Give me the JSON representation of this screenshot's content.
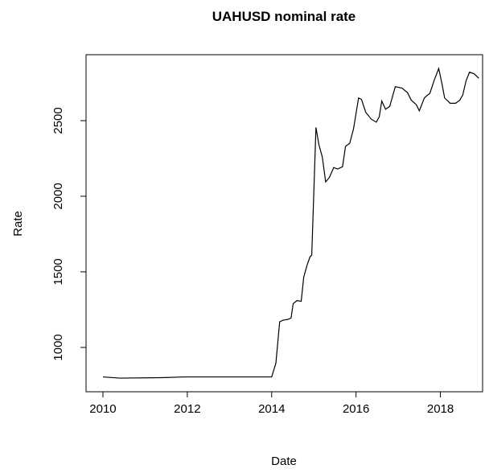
{
  "chart_data": {
    "type": "line",
    "title": "UAHUSD nominal rate",
    "x_label": "Date",
    "y_label": "Rate",
    "x": [
      2010.0,
      2010.4,
      2011.37,
      2011.94,
      2014.0,
      2014.1,
      2014.19,
      2014.27,
      2014.38,
      2014.46,
      2014.51,
      2014.6,
      2014.7,
      2014.76,
      2014.84,
      2014.91,
      2014.95,
      2015.05,
      2015.12,
      2015.2,
      2015.28,
      2015.37,
      2015.47,
      2015.56,
      2015.68,
      2015.75,
      2015.85,
      2015.94,
      2016.06,
      2016.13,
      2016.23,
      2016.36,
      2016.48,
      2016.55,
      2016.61,
      2016.7,
      2016.8,
      2016.93,
      2017.09,
      2017.22,
      2017.31,
      2017.43,
      2017.5,
      2017.62,
      2017.7,
      2017.75,
      2017.85,
      2017.96,
      2018.04,
      2018.1,
      2018.23,
      2018.36,
      2018.46,
      2018.53,
      2018.61,
      2018.69,
      2018.8,
      2018.91
    ],
    "series": [
      {
        "name": "Rate",
        "color": "#000000",
        "values": [
          805,
          797,
          800,
          805,
          805,
          896,
          1170,
          1180,
          1185,
          1195,
          1290,
          1310,
          1305,
          1465,
          1545,
          1600,
          1610,
          2455,
          2340,
          2260,
          2095,
          2125,
          2190,
          2180,
          2195,
          2330,
          2350,
          2445,
          2650,
          2640,
          2555,
          2510,
          2490,
          2525,
          2630,
          2575,
          2595,
          2725,
          2715,
          2685,
          2635,
          2605,
          2565,
          2650,
          2670,
          2680,
          2765,
          2845,
          2740,
          2650,
          2615,
          2615,
          2635,
          2670,
          2765,
          2820,
          2810,
          2780
        ]
      }
    ],
    "xlim": [
      2009.6,
      2019.0
    ],
    "ylim": [
      707,
      2936
    ],
    "xticks": [
      2010,
      2012,
      2014,
      2016,
      2018
    ],
    "yticks": [
      1000,
      1500,
      2000,
      2500
    ]
  }
}
